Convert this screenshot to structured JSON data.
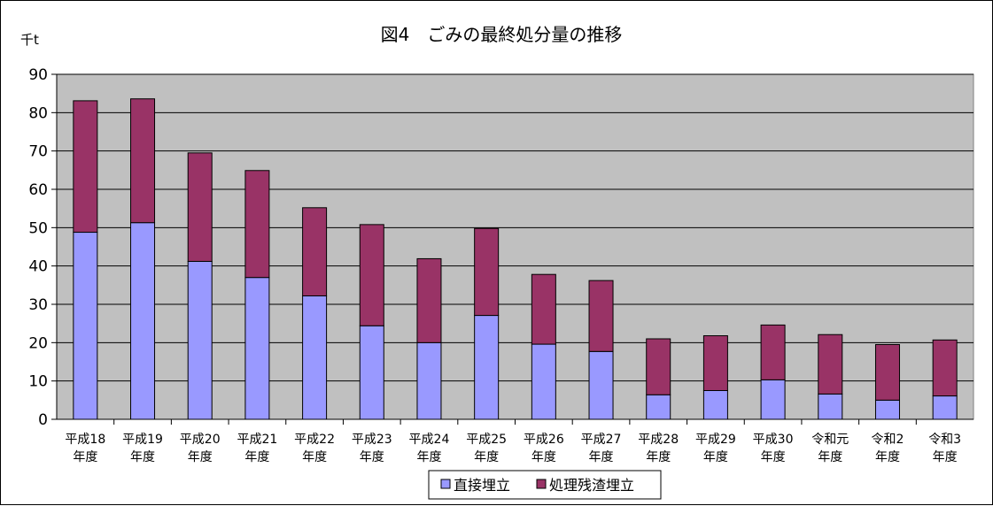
{
  "chart_data": {
    "type": "bar",
    "stacked": true,
    "title": "図4　ごみの最終処分量の推移",
    "unit_label": "千t",
    "ylim": [
      0,
      90
    ],
    "yticks": [
      0,
      10,
      20,
      30,
      40,
      50,
      60,
      70,
      80,
      90
    ],
    "grid": true,
    "legend_position": "bottom",
    "categories": [
      [
        "平成18",
        "年度"
      ],
      [
        "平成19",
        "年度"
      ],
      [
        "平成20",
        "年度"
      ],
      [
        "平成21",
        "年度"
      ],
      [
        "平成22",
        "年度"
      ],
      [
        "平成23",
        "年度"
      ],
      [
        "平成24",
        "年度"
      ],
      [
        "平成25",
        "年度"
      ],
      [
        "平成26",
        "年度"
      ],
      [
        "平成27",
        "年度"
      ],
      [
        "平成28",
        "年度"
      ],
      [
        "平成29",
        "年度"
      ],
      [
        "平成30",
        "年度"
      ],
      [
        "令和元",
        "年度"
      ],
      [
        "令和2",
        "年度"
      ],
      [
        "令和3",
        "年度"
      ]
    ],
    "series": [
      {
        "name": "直接埋立",
        "color": "#9999ff",
        "values": [
          48.8,
          51.3,
          41.2,
          37.0,
          32.2,
          24.4,
          20.0,
          27.1,
          19.6,
          17.7,
          6.4,
          7.5,
          10.3,
          6.6,
          5.0,
          6.1
        ]
      },
      {
        "name": "処理残渣埋立",
        "color": "#993366",
        "values": [
          34.3,
          32.3,
          28.3,
          27.9,
          23.0,
          26.4,
          21.9,
          22.7,
          18.2,
          18.5,
          14.6,
          14.3,
          14.3,
          15.5,
          14.5,
          14.6
        ]
      }
    ]
  },
  "colors": {
    "plot_background": "#c0c0c0",
    "gridline": "#000000"
  }
}
